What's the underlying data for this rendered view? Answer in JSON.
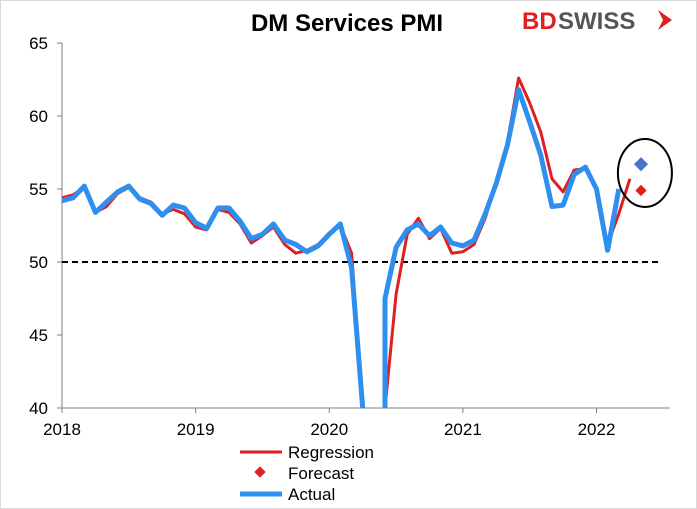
{
  "colors": {
    "regression": "#e02020",
    "forecast": "#e02020",
    "actual": "#2f8fef",
    "forecast_actual": "#4a72c8",
    "reference": "#000000"
  },
  "logo": {
    "part1": "BD",
    "part2": "SWISS"
  },
  "chart_data": {
    "type": "line",
    "title": "DM Services PMI",
    "xlabel": "",
    "ylabel": "",
    "ylim": [
      40,
      65
    ],
    "xlim": [
      2018.0,
      2022.55
    ],
    "y_ticks": [
      "40",
      "45",
      "50",
      "55",
      "60",
      "65"
    ],
    "x_ticks": [
      "2018",
      "2019",
      "2020",
      "2021",
      "2022"
    ],
    "reference_line": 50,
    "legend_placement": "bottom-center",
    "series": [
      {
        "name": "Regression",
        "points": [
          [
            2018.0,
            54.4
          ],
          [
            2018.083,
            54.6
          ],
          [
            2018.167,
            55.1
          ],
          [
            2018.25,
            53.4
          ],
          [
            2018.333,
            53.8
          ],
          [
            2018.417,
            54.7
          ],
          [
            2018.5,
            55.1
          ],
          [
            2018.583,
            54.4
          ],
          [
            2018.667,
            54.1
          ],
          [
            2018.75,
            53.3
          ],
          [
            2018.833,
            53.6
          ],
          [
            2018.917,
            53.3
          ],
          [
            2019.0,
            52.4
          ],
          [
            2019.083,
            52.2
          ],
          [
            2019.167,
            53.6
          ],
          [
            2019.25,
            53.4
          ],
          [
            2019.333,
            52.6
          ],
          [
            2019.417,
            51.3
          ],
          [
            2019.5,
            51.8
          ],
          [
            2019.583,
            52.4
          ],
          [
            2019.667,
            51.2
          ],
          [
            2019.75,
            50.6
          ],
          [
            2019.833,
            50.8
          ],
          [
            2019.917,
            51.2
          ],
          [
            2020.0,
            52.0
          ],
          [
            2020.083,
            52.5
          ],
          [
            2020.167,
            50.6
          ],
          [
            2020.25,
            40.0
          ]
        ]
      },
      {
        "name": "Regression",
        "points": [
          [
            2020.417,
            40.0
          ],
          [
            2020.5,
            47.8
          ],
          [
            2020.583,
            51.9
          ],
          [
            2020.667,
            53.0
          ],
          [
            2020.75,
            51.6
          ],
          [
            2020.833,
            52.3
          ],
          [
            2020.917,
            50.6
          ],
          [
            2021.0,
            50.7
          ],
          [
            2021.083,
            51.2
          ],
          [
            2021.167,
            53.0
          ],
          [
            2021.25,
            55.5
          ],
          [
            2021.333,
            58.2
          ],
          [
            2021.417,
            62.6
          ],
          [
            2021.5,
            60.9
          ],
          [
            2021.583,
            58.9
          ],
          [
            2021.667,
            55.7
          ],
          [
            2021.75,
            54.8
          ],
          [
            2021.833,
            56.3
          ],
          [
            2021.917,
            56.4
          ],
          [
            2022.0,
            55.0
          ],
          [
            2022.083,
            51.2
          ],
          [
            2022.167,
            53.3
          ],
          [
            2022.25,
            55.7
          ]
        ]
      },
      {
        "name": "Actual",
        "points": [
          [
            2018.0,
            54.2
          ],
          [
            2018.083,
            54.4
          ],
          [
            2018.167,
            55.2
          ],
          [
            2018.25,
            53.4
          ],
          [
            2018.333,
            54.1
          ],
          [
            2018.417,
            54.8
          ],
          [
            2018.5,
            55.2
          ],
          [
            2018.583,
            54.3
          ],
          [
            2018.667,
            54.0
          ],
          [
            2018.75,
            53.2
          ],
          [
            2018.833,
            53.9
          ],
          [
            2018.917,
            53.7
          ],
          [
            2019.0,
            52.7
          ],
          [
            2019.083,
            52.3
          ],
          [
            2019.167,
            53.7
          ],
          [
            2019.25,
            53.7
          ],
          [
            2019.333,
            52.8
          ],
          [
            2019.417,
            51.6
          ],
          [
            2019.5,
            51.9
          ],
          [
            2019.583,
            52.6
          ],
          [
            2019.667,
            51.5
          ],
          [
            2019.75,
            51.2
          ],
          [
            2019.833,
            50.7
          ],
          [
            2019.917,
            51.1
          ],
          [
            2020.0,
            51.9
          ],
          [
            2020.083,
            52.6
          ],
          [
            2020.167,
            49.6
          ],
          [
            2020.25,
            40.0
          ]
        ]
      },
      {
        "name": "Actual",
        "points": [
          [
            2020.417,
            40.0
          ],
          [
            2020.417,
            47.5
          ],
          [
            2020.5,
            51.0
          ],
          [
            2020.583,
            52.2
          ],
          [
            2020.667,
            52.6
          ],
          [
            2020.75,
            51.8
          ],
          [
            2020.833,
            52.4
          ],
          [
            2020.917,
            51.3
          ],
          [
            2021.0,
            51.1
          ],
          [
            2021.083,
            51.5
          ],
          [
            2021.167,
            53.3
          ],
          [
            2021.25,
            55.4
          ],
          [
            2021.333,
            58.0
          ],
          [
            2021.417,
            61.8
          ],
          [
            2021.5,
            59.6
          ],
          [
            2021.583,
            57.3
          ],
          [
            2021.667,
            53.8
          ],
          [
            2021.75,
            53.9
          ],
          [
            2021.833,
            56.0
          ],
          [
            2021.917,
            56.5
          ],
          [
            2022.0,
            55.0
          ],
          [
            2022.083,
            50.8
          ],
          [
            2022.167,
            55.0
          ]
        ]
      }
    ],
    "forecast_point": {
      "name": "Forecast",
      "x": 2022.333,
      "y": 54.9
    },
    "forecast_actual_point": {
      "x": 2022.333,
      "y": 56.7
    },
    "highlight_circle": {
      "x": 2022.25,
      "y": 56.1
    },
    "legend": [
      "Regression",
      "Forecast",
      "Actual"
    ]
  }
}
